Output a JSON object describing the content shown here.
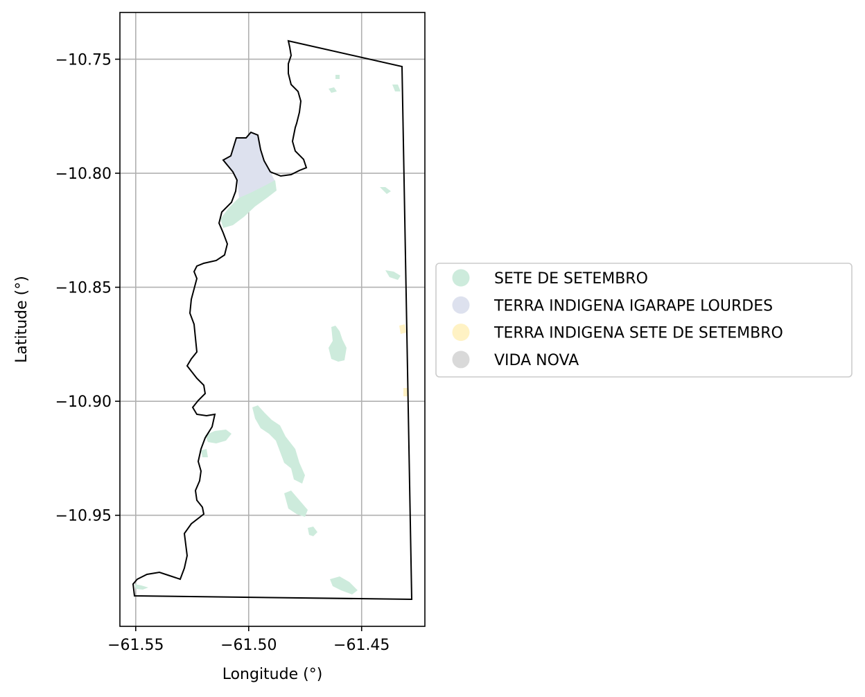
{
  "chart_data": {
    "type": "map",
    "xlabel": "Longitude (°)",
    "ylabel": "Latitude (°)",
    "xlim": [
      -61.557,
      -61.422
    ],
    "ylim": [
      -10.9987,
      -10.7295
    ],
    "grid": true,
    "xticks": [
      {
        "value": -61.55,
        "label": "−61.55"
      },
      {
        "value": -61.5,
        "label": "−61.50"
      },
      {
        "value": -61.45,
        "label": "−61.45"
      }
    ],
    "yticks": [
      {
        "value": -10.75,
        "label": "−10.75"
      },
      {
        "value": -10.8,
        "label": "−10.80"
      },
      {
        "value": -10.85,
        "label": "−10.85"
      },
      {
        "value": -10.9,
        "label": "−10.90"
      },
      {
        "value": -10.95,
        "label": "−10.95"
      }
    ],
    "legend_position": "right",
    "categories": [
      {
        "name": "SETE DE SETEMBRO",
        "color": "#cdebdc"
      },
      {
        "name": "TERRA INDIGENA IGARAPE LOURDES",
        "color": "#dde1ee"
      },
      {
        "name": "TERRA INDIGENA SETE DE SETEMBRO",
        "color": "#fff2c4"
      },
      {
        "name": "VIDA NOVA",
        "color": "#d9d9d9"
      }
    ],
    "boundary_color": "#000000"
  }
}
